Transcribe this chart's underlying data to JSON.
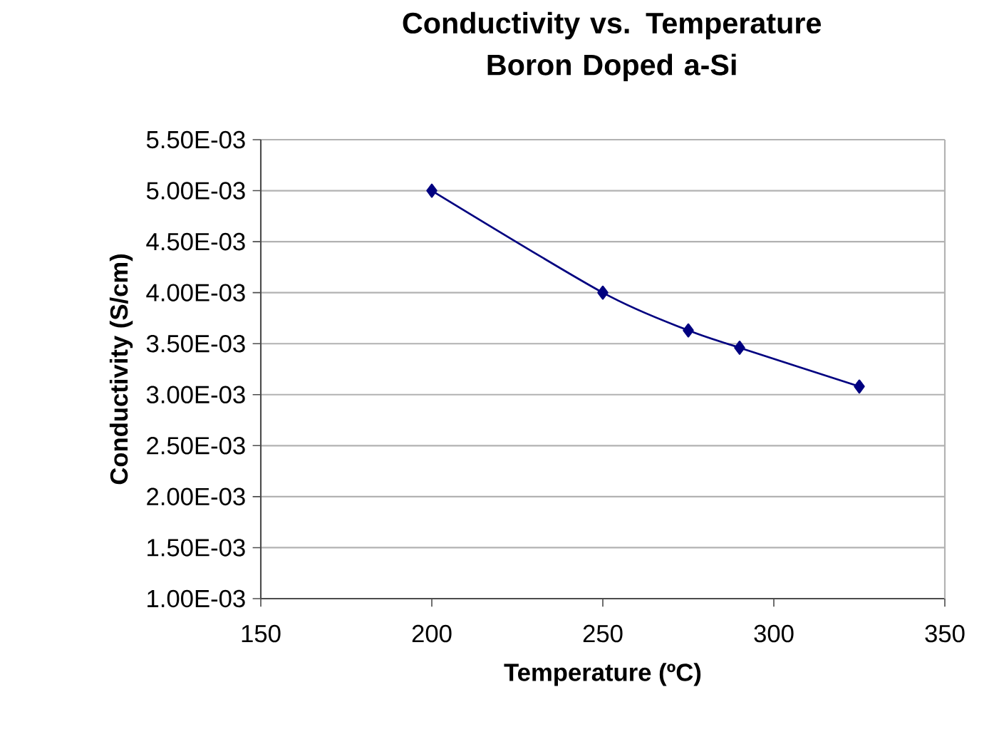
{
  "chart_data": {
    "type": "line",
    "title": "Conductivity vs. Temperature\nBoron Doped a-Si",
    "xlabel": "Temperature (ºC)",
    "ylabel": "Conductivity (S/cm)",
    "x": [
      200,
      250,
      275,
      290,
      325
    ],
    "series": [
      {
        "color": "#000080",
        "values": [
          0.005,
          0.004,
          0.00363,
          0.00346,
          0.00308
        ]
      }
    ],
    "xlim": [
      150,
      350
    ],
    "xticks": [
      150,
      200,
      250,
      300,
      350
    ],
    "ylim": [
      0.001,
      0.0055
    ],
    "yticks": [
      {
        "value": 0.001,
        "label": "1.00E-03"
      },
      {
        "value": 0.0015,
        "label": "1.50E-03"
      },
      {
        "value": 0.002,
        "label": "2.00E-03"
      },
      {
        "value": 0.0025,
        "label": "2.50E-03"
      },
      {
        "value": 0.003,
        "label": "3.00E-03"
      },
      {
        "value": 0.0035,
        "label": "3.50E-03"
      },
      {
        "value": 0.004,
        "label": "4.00E-03"
      },
      {
        "value": 0.0045,
        "label": "4.50E-03"
      },
      {
        "value": 0.005,
        "label": "5.00E-03"
      },
      {
        "value": 0.0055,
        "label": "5.50E-03"
      }
    ],
    "grid": "y",
    "marker": "diamond",
    "line_style": "solid"
  }
}
